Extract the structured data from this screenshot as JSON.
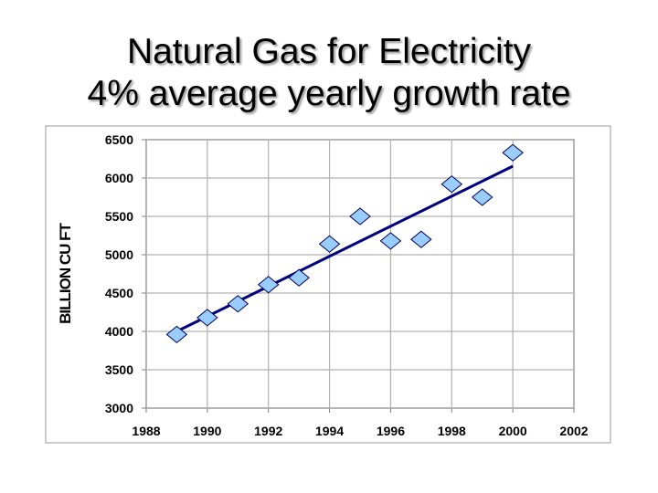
{
  "title_lines": [
    "Natural Gas for Electricity",
    "4% average yearly growth rate"
  ],
  "chart_data": {
    "type": "scatter",
    "title": "Natural Gas for Electricity 4% average yearly growth rate",
    "xlabel": "",
    "ylabel": "BILLION CU FT",
    "xlim": [
      1988,
      2002
    ],
    "ylim": [
      3000,
      6500
    ],
    "xticks": [
      1988,
      1990,
      1992,
      1994,
      1996,
      1998,
      2000,
      2002
    ],
    "yticks": [
      3000,
      3500,
      4000,
      4500,
      5000,
      5500,
      6000,
      6500
    ],
    "grid": true,
    "legend": "none",
    "marker": "diamond",
    "marker_color": "#99ccff",
    "line_color": "#000080",
    "points": {
      "x": [
        1989,
        1990,
        1991,
        1992,
        1993,
        1994,
        1995,
        1996,
        1997,
        1998,
        1999,
        2000
      ],
      "y": [
        3960,
        4180,
        4360,
        4610,
        4700,
        5140,
        5500,
        5180,
        5200,
        5920,
        5750,
        6330
      ]
    },
    "trendline": {
      "x": [
        1989,
        2000
      ],
      "y": [
        4000,
        6155
      ]
    }
  }
}
